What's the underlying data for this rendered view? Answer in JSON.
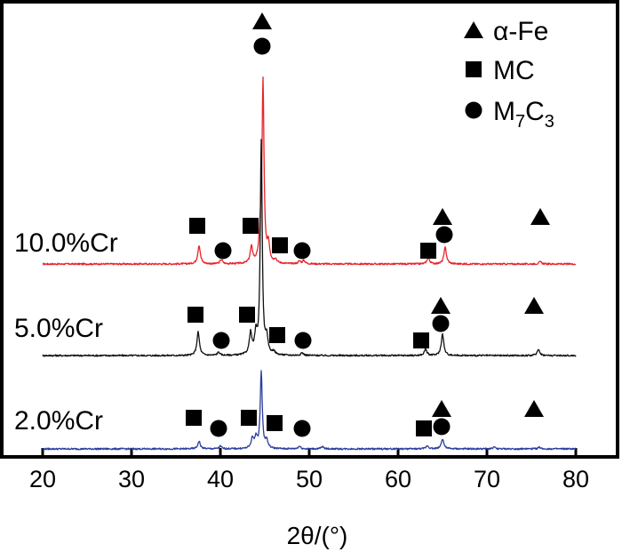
{
  "chart_data": {
    "type": "line",
    "xlabel": "2θ/(°)",
    "ylabel": "",
    "xlim": [
      20,
      80
    ],
    "x_ticks": [
      20,
      30,
      40,
      50,
      60,
      70,
      80
    ],
    "grid": false,
    "legend": {
      "placement": "top-right",
      "entries": [
        {
          "symbol": "triangle",
          "label": "α-Fe"
        },
        {
          "symbol": "square",
          "label": "MC"
        },
        {
          "symbol": "circle",
          "label_base": "M",
          "sub1": "7",
          "label_mid": "C",
          "sub2": "3"
        }
      ]
    },
    "series": [
      {
        "name": "10.0%Cr",
        "color": "#e8232a",
        "peaks": [
          {
            "x": 37.6,
            "h": 0.35
          },
          {
            "x": 40.1,
            "h": 0.08
          },
          {
            "x": 43.5,
            "h": 0.3
          },
          {
            "x": 44.5,
            "h": 0.48
          },
          {
            "x": 44.8,
            "h": 3.35
          },
          {
            "x": 45.4,
            "h": 0.35
          },
          {
            "x": 46.2,
            "h": 0.07
          },
          {
            "x": 48.9,
            "h": 0.05
          },
          {
            "x": 49.4,
            "h": 0.06
          },
          {
            "x": 63.4,
            "h": 0.12
          },
          {
            "x": 65.3,
            "h": 0.31
          },
          {
            "x": 76.0,
            "h": 0.04
          }
        ],
        "markers": [
          {
            "symbol": "square",
            "x": 37.4
          },
          {
            "symbol": "circle",
            "x": 40.3
          },
          {
            "symbol": "square",
            "x": 43.4
          },
          {
            "symbol": "square",
            "x": 46.7
          },
          {
            "symbol": "circle",
            "x": 49.2
          },
          {
            "symbol": "square",
            "x": 63.4
          },
          {
            "symbol": "triangle",
            "x": 65.0
          },
          {
            "symbol": "circle",
            "x": 65.2
          },
          {
            "symbol": "triangle",
            "x": 76.0
          }
        ]
      },
      {
        "name": "5.0%Cr",
        "color": "#111111",
        "peaks": [
          {
            "x": 37.5,
            "h": 0.44
          },
          {
            "x": 39.8,
            "h": 0.06
          },
          {
            "x": 43.4,
            "h": 0.4
          },
          {
            "x": 44.0,
            "h": 0.36
          },
          {
            "x": 44.6,
            "h": 4.0
          },
          {
            "x": 45.2,
            "h": 0.3
          },
          {
            "x": 46.0,
            "h": 0.06
          },
          {
            "x": 49.2,
            "h": 0.05
          },
          {
            "x": 63.1,
            "h": 0.12
          },
          {
            "x": 65.0,
            "h": 0.4
          },
          {
            "x": 75.8,
            "h": 0.12
          }
        ],
        "markers": [
          {
            "symbol": "square",
            "x": 37.2
          },
          {
            "symbol": "circle",
            "x": 40.1
          },
          {
            "symbol": "square",
            "x": 43.0
          },
          {
            "symbol": "square",
            "x": 46.4
          },
          {
            "symbol": "circle",
            "x": 49.3
          },
          {
            "symbol": "square",
            "x": 62.6
          },
          {
            "symbol": "triangle",
            "x": 64.8
          },
          {
            "symbol": "circle",
            "x": 64.8
          },
          {
            "symbol": "triangle",
            "x": 75.3
          }
        ]
      },
      {
        "name": "2.0%Cr",
        "color": "#2b3d9e",
        "peaks": [
          {
            "x": 37.6,
            "h": 0.14
          },
          {
            "x": 40.0,
            "h": 0.05
          },
          {
            "x": 43.6,
            "h": 0.18
          },
          {
            "x": 44.0,
            "h": 0.2
          },
          {
            "x": 44.6,
            "h": 1.45
          },
          {
            "x": 45.2,
            "h": 0.15
          },
          {
            "x": 48.9,
            "h": 0.05
          },
          {
            "x": 51.5,
            "h": 0.04
          },
          {
            "x": 63.3,
            "h": 0.06
          },
          {
            "x": 65.0,
            "h": 0.19
          },
          {
            "x": 70.8,
            "h": 0.03
          },
          {
            "x": 75.9,
            "h": 0.03
          }
        ],
        "markers": [
          {
            "symbol": "square",
            "x": 37.0
          },
          {
            "symbol": "circle",
            "x": 39.8
          },
          {
            "symbol": "square",
            "x": 43.2
          },
          {
            "symbol": "square",
            "x": 46.1
          },
          {
            "symbol": "circle",
            "x": 49.2
          },
          {
            "symbol": "square",
            "x": 62.9
          },
          {
            "symbol": "triangle",
            "x": 64.9
          },
          {
            "symbol": "circle",
            "x": 64.9
          },
          {
            "symbol": "triangle",
            "x": 75.3
          }
        ]
      }
    ]
  }
}
